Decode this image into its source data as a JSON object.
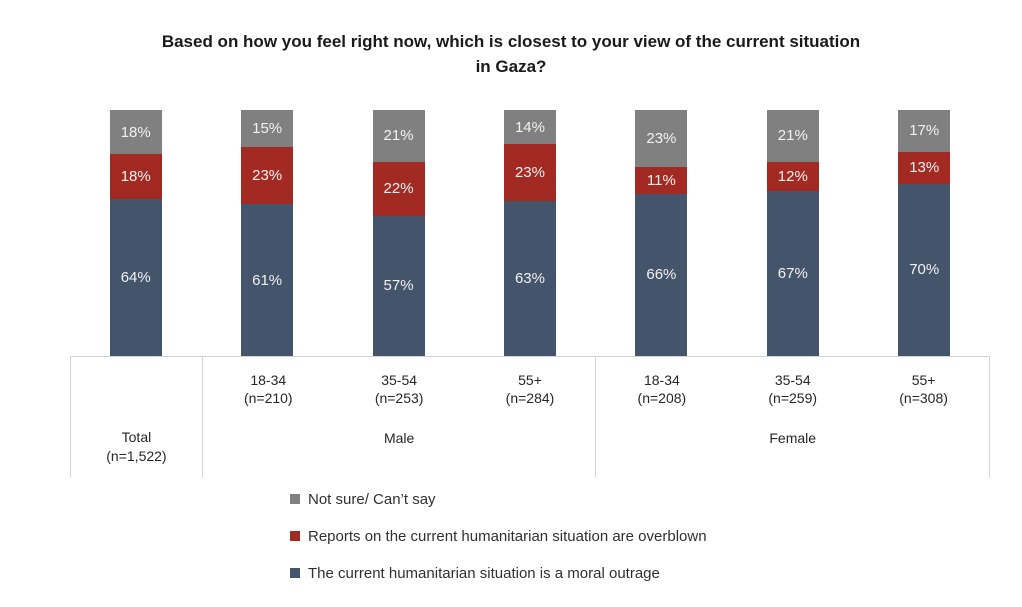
{
  "title": {
    "text": "Based on how you feel right now, which is closest to your view of the current situation in Gaza?"
  },
  "chart_data": {
    "type": "bar",
    "stacked": true,
    "unit": "%",
    "ylim": [
      0,
      100
    ],
    "grid": false,
    "legend_position": "bottom",
    "title": "Based on how you feel right now, which is closest to your view of the current situation in Gaza?",
    "categories": [
      "Total (n=1,522)",
      "Male 18-34 (n=210)",
      "Male 35-54 (n=253)",
      "Male 55+ (n=284)",
      "Female 18-34 (n=208)",
      "Female 35-54 (n=259)",
      "Female 55+ (n=308)"
    ],
    "series": [
      {
        "name": "The current humanitarian situation is a moral outrage",
        "color": "#44546A",
        "values": [
          64,
          61,
          57,
          63,
          66,
          67,
          70
        ]
      },
      {
        "name": "Reports on the current humanitarian situation are overblown",
        "color": "#A32A23",
        "values": [
          18,
          23,
          22,
          23,
          11,
          12,
          13
        ]
      },
      {
        "name": "Not sure/ Can’t say",
        "color": "#808080",
        "values": [
          18,
          15,
          21,
          14,
          23,
          21,
          17
        ]
      }
    ]
  },
  "axis": {
    "total": {
      "line1": "Total",
      "line2": "(n=1,522)"
    },
    "groups": [
      {
        "label": "Male",
        "columns": [
          {
            "age": "18-34",
            "n": "(n=210)"
          },
          {
            "age": "35-54",
            "n": "(n=253)"
          },
          {
            "age": "55+",
            "n": "(n=284)"
          }
        ]
      },
      {
        "label": "Female",
        "columns": [
          {
            "age": "18-34",
            "n": "(n=208)"
          },
          {
            "age": "35-54",
            "n": "(n=259)"
          },
          {
            "age": "55+",
            "n": "(n=308)"
          }
        ]
      }
    ]
  },
  "legend": {
    "items": [
      {
        "label": "Not sure/ Can’t say",
        "color": "#808080"
      },
      {
        "label": "Reports on the current humanitarian situation are overblown",
        "color": "#A32A23"
      },
      {
        "label": "The current humanitarian situation is a moral outrage",
        "color": "#44546A"
      }
    ]
  },
  "style": {
    "bar_label_color": "#F2F2F2",
    "axis_border_color": "#D2D2D2",
    "text_color": "#262626",
    "title_color": "#1A1A1A"
  }
}
